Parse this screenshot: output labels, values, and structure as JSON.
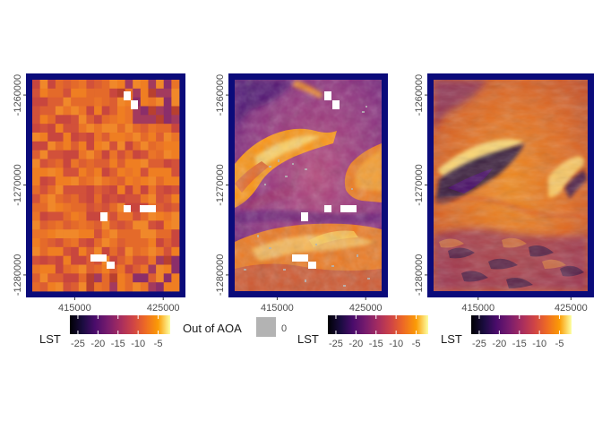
{
  "chart_data": [
    {
      "type": "heatmap",
      "panel": "left",
      "x_ticks": [
        {
          "value": 415000,
          "label": "415000"
        },
        {
          "value": 425000,
          "label": "425000"
        }
      ],
      "y_ticks": [
        {
          "value": -1260000,
          "label": "-1260000"
        },
        {
          "value": -1270000,
          "label": "-1270000"
        },
        {
          "value": -1280000,
          "label": "-1280000"
        }
      ],
      "xlim": [
        410200,
        426800
      ],
      "ylim": [
        -1281800,
        -1258300
      ],
      "frame_color": "#0b0b7a",
      "legend": {
        "title": "LST",
        "ticks": [
          {
            "value": -25,
            "label": "-25"
          },
          {
            "value": -20,
            "label": "-20"
          },
          {
            "value": -15,
            "label": "-15"
          },
          {
            "value": -10,
            "label": "-10"
          },
          {
            "value": -5,
            "label": "-5"
          }
        ],
        "range": [
          -27,
          -2
        ],
        "colormap": "inferno"
      },
      "aoa_legend": {
        "title": "Out of AOA",
        "label": "0",
        "color": "#b3b3b3"
      }
    },
    {
      "type": "heatmap",
      "panel": "middle",
      "x_ticks": [
        {
          "value": 415000,
          "label": "415000"
        },
        {
          "value": 425000,
          "label": "425000"
        }
      ],
      "y_ticks": [
        {
          "value": -1260000,
          "label": "-1260000"
        },
        {
          "value": -1270000,
          "label": "-1270000"
        },
        {
          "value": -1280000,
          "label": "-1280000"
        }
      ],
      "xlim": [
        410200,
        426800
      ],
      "ylim": [
        -1281800,
        -1258300
      ],
      "frame_color": "#0b0b7a",
      "legend": {
        "title": "LST",
        "ticks": [
          {
            "value": -25,
            "label": "-25"
          },
          {
            "value": -20,
            "label": "-20"
          },
          {
            "value": -15,
            "label": "-15"
          },
          {
            "value": -10,
            "label": "-10"
          },
          {
            "value": -5,
            "label": "-5"
          }
        ],
        "range": [
          -27,
          -2
        ],
        "colormap": "inferno"
      }
    },
    {
      "type": "heatmap",
      "panel": "right",
      "x_ticks": [
        {
          "value": 415000,
          "label": "415000"
        },
        {
          "value": 425000,
          "label": "425000"
        }
      ],
      "y_ticks": [
        {
          "value": -1260000,
          "label": "-1260000"
        },
        {
          "value": -1270000,
          "label": "-1270000"
        },
        {
          "value": -1280000,
          "label": "-1280000"
        }
      ],
      "xlim": [
        410200,
        426800
      ],
      "ylim": [
        -1281800,
        -1258300
      ],
      "frame_color": "#0b0b7a",
      "legend": {
        "title": "LST",
        "ticks": [
          {
            "value": -25,
            "label": "-25"
          },
          {
            "value": -20,
            "label": "-20"
          },
          {
            "value": -15,
            "label": "-15"
          },
          {
            "value": -10,
            "label": "-10"
          },
          {
            "value": -5,
            "label": "-5"
          }
        ],
        "range": [
          -27,
          -2
        ],
        "colormap": "inferno"
      }
    }
  ]
}
